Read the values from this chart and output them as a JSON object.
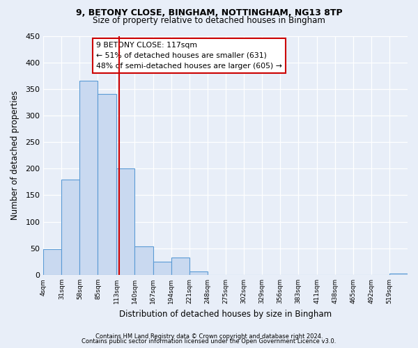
{
  "title1": "9, BETONY CLOSE, BINGHAM, NOTTINGHAM, NG13 8TP",
  "title2": "Size of property relative to detached houses in Bingham",
  "xlabel": "Distribution of detached houses by size in Bingham",
  "ylabel": "Number of detached properties",
  "bar_edges": [
    4,
    31,
    58,
    85,
    113,
    140,
    167,
    194,
    221,
    248,
    275,
    302,
    329,
    356,
    383,
    411,
    438,
    465,
    492,
    519,
    546
  ],
  "bar_heights": [
    48,
    180,
    365,
    340,
    200,
    54,
    25,
    33,
    7,
    0,
    0,
    0,
    0,
    0,
    0,
    0,
    0,
    0,
    0,
    3
  ],
  "bar_color": "#c9d9f0",
  "bar_edge_color": "#5b9bd5",
  "vline_x": 117,
  "vline_color": "#cc0000",
  "annotation_title": "9 BETONY CLOSE: 117sqm",
  "annotation_line1": "← 51% of detached houses are smaller (631)",
  "annotation_line2": "48% of semi-detached houses are larger (605) →",
  "annotation_box_color": "#ffffff",
  "annotation_box_edge": "#cc0000",
  "ylim": [
    0,
    450
  ],
  "yticks": [
    0,
    50,
    100,
    150,
    200,
    250,
    300,
    350,
    400,
    450
  ],
  "footer1": "Contains HM Land Registry data © Crown copyright and database right 2024.",
  "footer2": "Contains public sector information licensed under the Open Government Licence v3.0.",
  "bg_color": "#e8eef8",
  "plot_bg_color": "#e8eef8",
  "grid_color": "#ffffff"
}
